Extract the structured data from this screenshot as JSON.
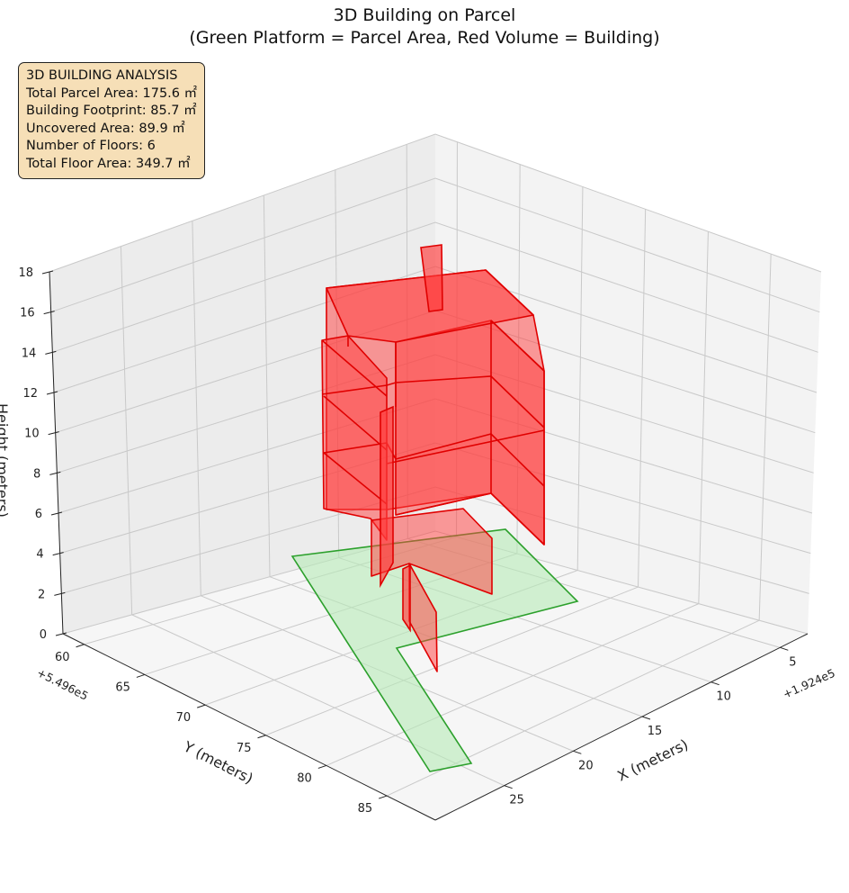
{
  "chart_data": {
    "type": "3d-polygons",
    "title": "3D Building on Parcel",
    "subtitle": "(Green Platform = Parcel Area, Red Volume = Building)",
    "xlabel": "X (meters)",
    "ylabel": "Y (meters)",
    "zlabel": "Height (meters)",
    "x_offset_label": "+1.924e5",
    "y_offset_label": "+5.496e5",
    "x_ticks": [
      "5",
      "10",
      "15",
      "20",
      "25"
    ],
    "y_ticks": [
      "60",
      "65",
      "70",
      "75",
      "80",
      "85"
    ],
    "z_ticks": [
      "0",
      "2",
      "4",
      "6",
      "8",
      "10",
      "12",
      "14",
      "16",
      "18"
    ],
    "grid": true,
    "colors": {
      "parcel_fill": "#b8ebb8",
      "parcel_edge": "#2ca02c",
      "building_fill": "#ff3b3b",
      "building_edge": "#e00000",
      "pane": "#f2f2f2",
      "grid": "#c8c8c8"
    },
    "annotation": {
      "heading": "3D BUILDING ANALYSIS",
      "lines": [
        "Total Parcel Area: 175.6 ㎡",
        "Building Footprint: 85.7 ㎡",
        "Uncovered Area: 89.9 ㎡",
        "Number of Floors: 6",
        "Total Floor Area: 349.7 ㎡"
      ]
    }
  }
}
